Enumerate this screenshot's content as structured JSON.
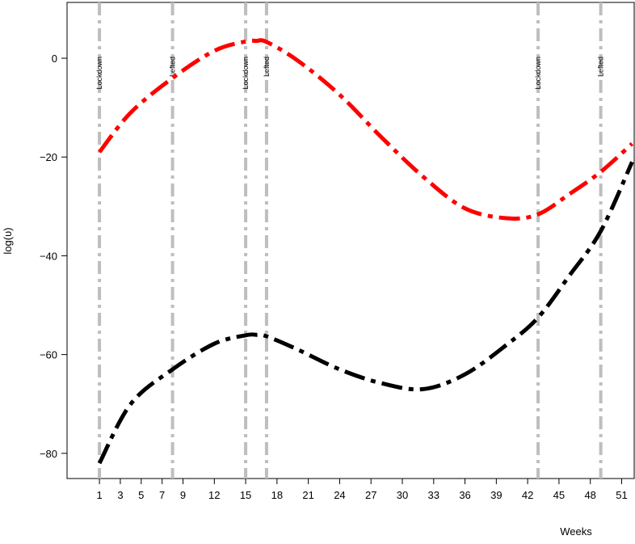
{
  "chart_data": {
    "type": "line",
    "y_label": "log(υ)",
    "x_label": "Weeks",
    "xlim": [
      -2.1,
      52.2
    ],
    "ylim": [
      -85.1,
      11.3
    ],
    "xticks": [
      1,
      3,
      5,
      7,
      9,
      12,
      15,
      18,
      21,
      24,
      27,
      30,
      33,
      36,
      39,
      42,
      45,
      48,
      51
    ],
    "yticks": [
      {
        "value": 0,
        "label": "0"
      },
      {
        "value": -20,
        "label": "−20"
      },
      {
        "value": -40,
        "label": "−40"
      },
      {
        "value": -60,
        "label": "−60"
      },
      {
        "value": -80,
        "label": "−80"
      }
    ],
    "x": [
      1,
      4,
      8,
      12,
      15,
      16,
      17,
      20,
      24,
      28,
      32,
      36,
      40,
      43,
      46,
      49,
      52
    ],
    "series": [
      {
        "color": "#ff0000",
        "values": [
          -19,
          -11,
          -4,
          1.5,
          3.4,
          3.5,
          3.3,
          -0.5,
          -7.4,
          -16,
          -24,
          -30.4,
          -32.4,
          -31.6,
          -27.5,
          -23,
          -17.3
        ]
      },
      {
        "color": "#000000",
        "values": [
          -82,
          -70,
          -63,
          -57.8,
          -56.1,
          -56,
          -56.3,
          -59,
          -63,
          -65.8,
          -67,
          -64,
          -58,
          -52.5,
          -44,
          -35,
          -21
        ]
      }
    ],
    "events": [
      {
        "x": 1,
        "label": "Lockdown"
      },
      {
        "x": 8,
        "label": "Lefted"
      },
      {
        "x": 15,
        "label": "Lockdown"
      },
      {
        "x": 17,
        "label": "Lefted"
      },
      {
        "x": 43,
        "label": "Lockdown"
      },
      {
        "x": 49,
        "label": "Lefted"
      }
    ],
    "event_color": "#bebebe"
  }
}
